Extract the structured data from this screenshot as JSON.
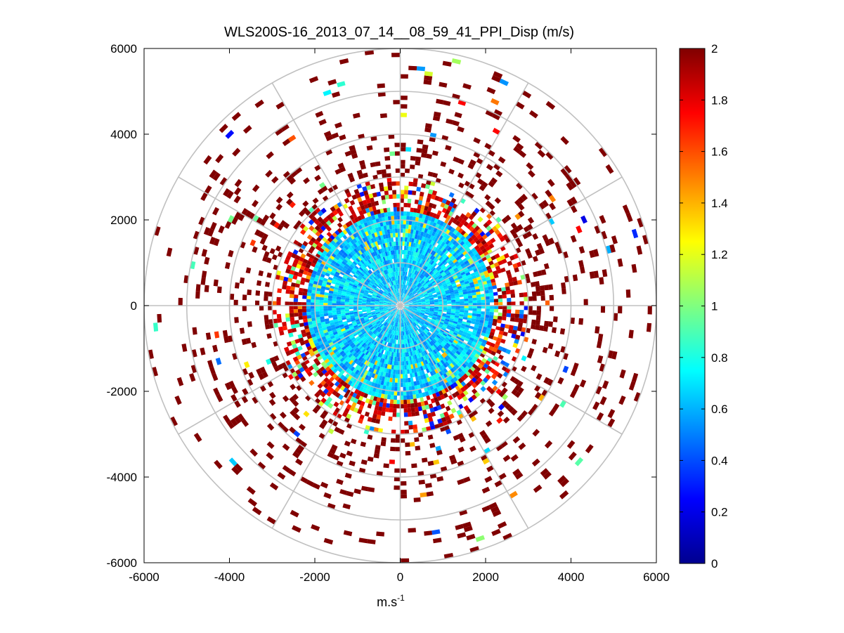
{
  "chart_data": {
    "type": "heatmap",
    "subtype": "polar-ppi",
    "title": "WLS200S-16_2013_07_14__08_59_41_PPI_Disp (m/s)",
    "xlabel": "m.s",
    "xlabel_superscript": "-1",
    "ylabel": "",
    "xlim": [
      -6000,
      6000
    ],
    "ylim": [
      -6000,
      6000
    ],
    "x_ticks": [
      -6000,
      -4000,
      -2000,
      0,
      2000,
      4000,
      6000
    ],
    "y_ticks": [
      -6000,
      -4000,
      -2000,
      0,
      2000,
      4000,
      6000
    ],
    "x_tick_labels": [
      "-6000",
      "-4000",
      "-2000",
      "0",
      "2000",
      "4000",
      "6000"
    ],
    "y_tick_labels": [
      "-6000",
      "-4000",
      "-2000",
      "0",
      "2000",
      "4000",
      "6000"
    ],
    "polar_grid_rings": [
      1000,
      2000,
      3000,
      4000,
      5000,
      6000
    ],
    "polar_grid_spokes_deg": [
      0,
      30,
      60,
      90,
      120,
      150,
      180,
      210,
      240,
      270,
      300,
      330
    ],
    "colorbar": {
      "min": 0,
      "max": 2,
      "colormap": "jet",
      "ticks": [
        0,
        0.2,
        0.4,
        0.6,
        0.8,
        1,
        1.2,
        1.4,
        1.6,
        1.8,
        2
      ],
      "tick_labels": [
        "0",
        "0.2",
        "0.4",
        "0.6",
        "0.8",
        "1",
        "1.2",
        "1.4",
        "1.6",
        "1.8",
        "2"
      ]
    },
    "description_ranges": {
      "inner_core_range_m": [
        0,
        2200
      ],
      "inner_core_value_approx": 0.65,
      "transition_ring_range_m": [
        2200,
        3000
      ],
      "outer_sparse_range_m": [
        3000,
        6000
      ],
      "outer_value_approx": 2.0
    }
  }
}
